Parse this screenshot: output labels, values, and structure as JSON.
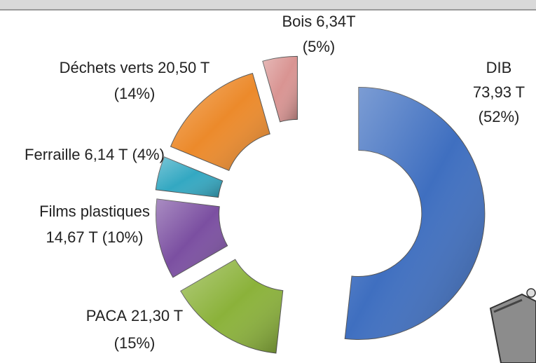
{
  "chart_data": {
    "type": "pie",
    "categories": [
      "DIB",
      "PACA",
      "Films plastiques",
      "Ferraille",
      "Déchets verts",
      "Bois"
    ],
    "values": [
      73.93,
      21.3,
      14.67,
      6.14,
      20.5,
      6.34
    ],
    "value_labels": [
      "73,93 T",
      "21,30 T",
      "14,67 T",
      "6,14 T",
      "20,50 T",
      "6,34T"
    ],
    "percents": [
      52,
      15,
      10,
      4,
      14,
      5
    ],
    "percent_labels": [
      "(52%)",
      "(15%)",
      "(10%)",
      "(4%)",
      "(14%)",
      "(5%)"
    ],
    "colors": [
      "#3f6fc0",
      "#8bb23a",
      "#7b4fa1",
      "#33a8c2",
      "#ec8a2b",
      "#d99492"
    ],
    "donut": true
  }
}
